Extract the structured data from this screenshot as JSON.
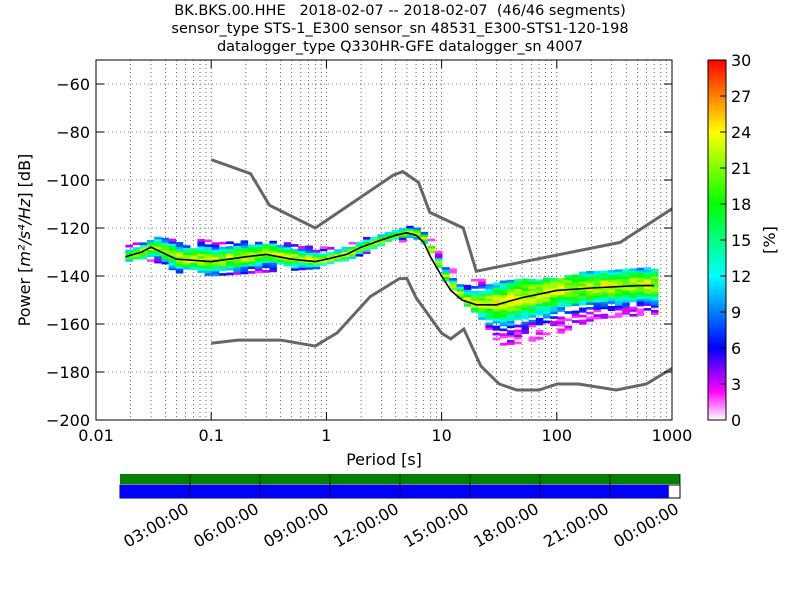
{
  "title": {
    "line1": "BK.BKS.00.HHE   2018-02-07 -- 2018-02-07  (46/46 segments)",
    "line2": "sensor_type STS-1_E300 sensor_sn 48531_E300-STS1-120-198",
    "line3": "datalogger_type Q330HR-GFE datalogger_sn 4007"
  },
  "chart_data": [
    {
      "type": "heatmap",
      "xlabel": "Period [s]",
      "ylabel_prefix": "Power [",
      "ylabel_units": "m²/s⁴/Hz",
      "ylabel_suffix": "] [dB]",
      "x_scale": "log",
      "xlim": [
        0.01,
        1000
      ],
      "ylim": [
        -200,
        -50
      ],
      "x_ticks": [
        0.01,
        0.1,
        1,
        10,
        100,
        1000
      ],
      "x_tick_labels": [
        "0.01",
        "0.1",
        "1",
        "10",
        "100",
        "1000"
      ],
      "y_ticks": [
        -200,
        -180,
        -160,
        -140,
        -120,
        -100,
        -80,
        -60
      ],
      "y_tick_labels": [
        "−200",
        "−180",
        "−160",
        "−140",
        "−120",
        "−100",
        "−80",
        "−60"
      ],
      "grid": "dotted vertical and horizontal",
      "colorbar": {
        "label": "[%]",
        "range": [
          0,
          30
        ],
        "ticks": [
          0,
          3,
          6,
          9,
          12,
          15,
          18,
          21,
          24,
          27,
          30
        ],
        "tick_labels": [
          "0",
          "3",
          "6",
          "9",
          "12",
          "15",
          "18",
          "21",
          "24",
          "27",
          "30"
        ],
        "colormap": "pqlx (white-magenta-blue-cyan-green-yellow-red)"
      },
      "noise_models": {
        "high_noise_model": {
          "period": [
            0.1,
            0.22,
            0.32,
            0.8,
            3.8,
            4.6,
            6.3,
            7.9,
            15.4,
            20,
            354.8,
            1000
          ],
          "power": [
            -91.5,
            -97.4,
            -110.5,
            -120,
            -98,
            -96.5,
            -101,
            -113.5,
            -120,
            -138,
            -126,
            -112
          ]
        },
        "low_noise_model": {
          "period": [
            0.1,
            0.17,
            0.4,
            0.8,
            1.24,
            2.4,
            4.3,
            5,
            6,
            10,
            12,
            15.6,
            21.9,
            31.6,
            45,
            70,
            101,
            154,
            328,
            600,
            1000
          ],
          "power": [
            -168,
            -166.7,
            -166.7,
            -169.2,
            -163.7,
            -148.6,
            -141.1,
            -141.1,
            -149,
            -163.8,
            -166.2,
            -162.1,
            -177.5,
            -185,
            -187.5,
            -187.5,
            -185,
            -185,
            -187.5,
            -185,
            -178.5
          ]
        }
      },
      "median_curve": {
        "period": [
          0.018,
          0.025,
          0.03,
          0.05,
          0.1,
          0.2,
          0.3,
          0.5,
          0.8,
          1,
          1.5,
          2,
          3,
          4,
          5,
          6,
          7,
          8,
          10,
          12,
          15,
          20,
          30,
          50,
          80,
          100,
          200,
          500,
          700
        ],
        "power": [
          -132,
          -130,
          -128,
          -133,
          -134,
          -132,
          -131,
          -133,
          -134,
          -133,
          -131,
          -128,
          -125,
          -123,
          -122,
          -123,
          -126,
          -132,
          -140,
          -146,
          -150,
          -152,
          -152,
          -149,
          -147,
          -146,
          -145,
          -144,
          -144
        ]
      },
      "spread_top": {
        "period": [
          0.018,
          0.03,
          0.05,
          0.1,
          0.2,
          0.4,
          0.8,
          1,
          2,
          3,
          5,
          7,
          10,
          15,
          20,
          30,
          50,
          100,
          200,
          700
        ],
        "power": [
          -128,
          -124,
          -125,
          -126,
          -126,
          -126,
          -129,
          -128,
          -125,
          -122,
          -120,
          -122,
          -135,
          -142,
          -142,
          -143,
          -142,
          -141,
          -138,
          -137
        ]
      },
      "spread_bottom": {
        "period": [
          0.018,
          0.03,
          0.05,
          0.1,
          0.2,
          0.4,
          0.8,
          1,
          2,
          3,
          5,
          7,
          10,
          15,
          20,
          30,
          50,
          100,
          200,
          700
        ],
        "power": [
          -134,
          -134,
          -139,
          -140,
          -139,
          -138,
          -137,
          -136,
          -131,
          -128,
          -125,
          -127,
          -142,
          -152,
          -157,
          -169,
          -168,
          -164,
          -158,
          -156
        ]
      }
    },
    {
      "type": "timeline",
      "ticks": [
        "03:00:00",
        "06:00:00",
        "09:00:00",
        "12:00:00",
        "15:00:00",
        "18:00:00",
        "21:00:00",
        "00:00:00"
      ],
      "coverage_fraction": {
        "green_bar": 1.0,
        "blue_bar": 0.98
      },
      "colors": {
        "green": "#008000",
        "blue": "#0000ff"
      }
    }
  ],
  "colors": {
    "noise_model": "#666666",
    "median": "#000000"
  }
}
